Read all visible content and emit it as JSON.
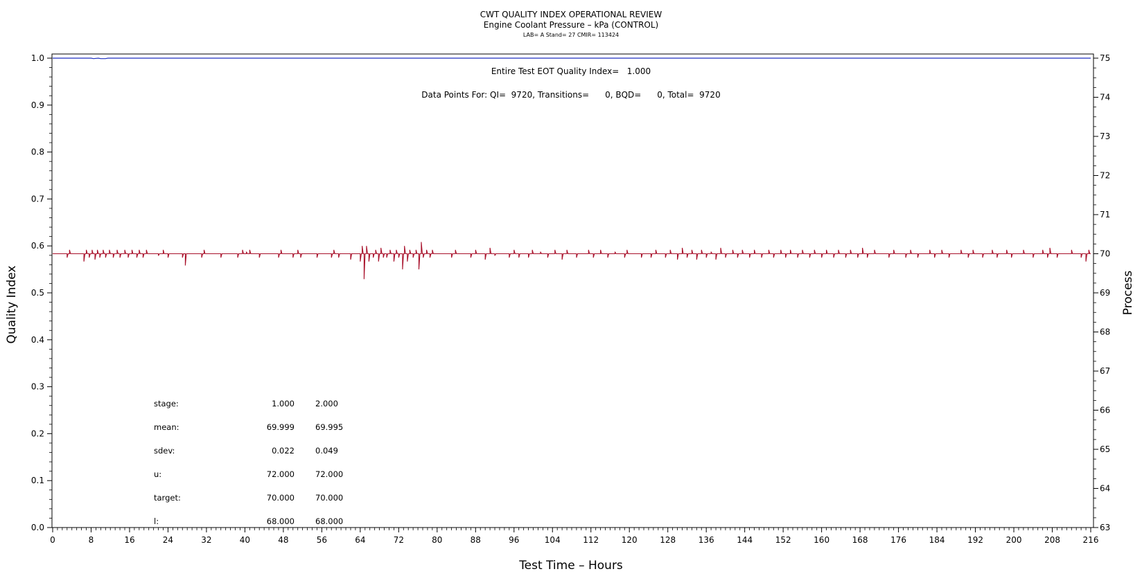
{
  "chart_data": {
    "type": "line",
    "title": "CWT QUALITY INDEX OPERATIONAL REVIEW",
    "subtitle": "Engine Coolant Pressure – kPa (CONTROL)",
    "subtitle2": "LAB= A Stand= 27 CMIR= 113424",
    "xlabel": "Test Time – Hours",
    "ylabel": "Quality Index",
    "y2label": "Process",
    "xlim": [
      0,
      216
    ],
    "ylim": [
      0.0,
      1.0
    ],
    "y2lim": [
      63,
      75
    ],
    "x_ticks": [
      0,
      8,
      16,
      24,
      32,
      40,
      48,
      56,
      64,
      72,
      80,
      88,
      96,
      104,
      112,
      120,
      128,
      136,
      144,
      152,
      160,
      168,
      176,
      184,
      192,
      200,
      208,
      216
    ],
    "y_ticks": [
      "0.0",
      "0.1",
      "0.2",
      "0.3",
      "0.4",
      "0.5",
      "0.6",
      "0.7",
      "0.8",
      "0.9",
      "1.0"
    ],
    "y2_ticks": [
      63,
      64,
      65,
      66,
      67,
      68,
      69,
      70,
      71,
      72,
      73,
      74,
      75
    ],
    "annotations": [
      "Entire Test EOT Quality Index=   1.000",
      "Data Points For: QI=  9720, Transitions=      0, BQD=      0, Total=  9720"
    ],
    "stats_table": {
      "rows": [
        {
          "label": "stage:",
          "values": [
            "1.000",
            "2.000"
          ]
        },
        {
          "label": "mean:",
          "values": [
            "69.999",
            "69.995"
          ]
        },
        {
          "label": "sdev:",
          "values": [
            "0.022",
            "0.049"
          ]
        },
        {
          "label": "u:",
          "values": [
            "72.000",
            "72.000"
          ]
        },
        {
          "label": "target:",
          "values": [
            "70.000",
            "70.000"
          ]
        },
        {
          "label": "l:",
          "values": [
            "68.000",
            "68.000"
          ]
        }
      ]
    },
    "series": [
      {
        "axis": "left",
        "color": "#1f2fbf",
        "x": [
          0,
          8,
          8.5,
          9.5,
          10,
          11,
          11.5,
          216
        ],
        "y": [
          1.0,
          1.0,
          0.999,
          1.0,
          0.999,
          0.999,
          1.0,
          1.0
        ]
      },
      {
        "axis": "right",
        "color": "#a8102a",
        "baseline": 70.0,
        "excursions": [
          [
            3.0,
            69.9
          ],
          [
            3.5,
            70.1
          ],
          [
            6.5,
            69.8
          ],
          [
            7.0,
            70.1
          ],
          [
            7.6,
            69.9
          ],
          [
            8.2,
            70.1
          ],
          [
            8.8,
            69.85
          ],
          [
            9.3,
            70.1
          ],
          [
            9.8,
            69.9
          ],
          [
            10.5,
            70.1
          ],
          [
            11.0,
            69.9
          ],
          [
            11.8,
            70.1
          ],
          [
            12.6,
            69.9
          ],
          [
            13.4,
            70.1
          ],
          [
            14.0,
            69.9
          ],
          [
            15.0,
            70.1
          ],
          [
            15.7,
            69.9
          ],
          [
            16.5,
            70.1
          ],
          [
            17.5,
            69.9
          ],
          [
            18.0,
            70.1
          ],
          [
            18.8,
            69.9
          ],
          [
            19.5,
            70.1
          ],
          [
            22.0,
            69.95
          ],
          [
            23.0,
            70.1
          ],
          [
            24.0,
            69.9
          ],
          [
            27.0,
            69.9
          ],
          [
            27.6,
            69.7
          ],
          [
            31.0,
            69.9
          ],
          [
            31.5,
            70.1
          ],
          [
            35.0,
            69.9
          ],
          [
            38.5,
            69.9
          ],
          [
            39.5,
            70.1
          ],
          [
            40.3,
            70.05
          ],
          [
            41.0,
            70.1
          ],
          [
            43.0,
            69.9
          ],
          [
            47.0,
            69.9
          ],
          [
            47.5,
            70.1
          ],
          [
            50.0,
            69.9
          ],
          [
            51.0,
            70.1
          ],
          [
            51.6,
            69.9
          ],
          [
            55.0,
            69.9
          ],
          [
            58.0,
            69.9
          ],
          [
            58.5,
            70.1
          ],
          [
            59.5,
            69.9
          ],
          [
            62.0,
            69.85
          ],
          [
            64.0,
            69.8
          ],
          [
            64.4,
            70.2
          ],
          [
            64.8,
            69.35
          ],
          [
            65.3,
            70.2
          ],
          [
            65.8,
            69.8
          ],
          [
            66.7,
            69.9
          ],
          [
            67.2,
            70.1
          ],
          [
            67.8,
            69.8
          ],
          [
            68.3,
            70.15
          ],
          [
            68.8,
            69.9
          ],
          [
            69.5,
            69.9
          ],
          [
            70.2,
            70.1
          ],
          [
            71.0,
            69.8
          ],
          [
            71.5,
            70.1
          ],
          [
            72.0,
            69.9
          ],
          [
            72.8,
            69.6
          ],
          [
            73.2,
            70.2
          ],
          [
            73.8,
            69.8
          ],
          [
            74.3,
            70.1
          ],
          [
            75.0,
            69.9
          ],
          [
            75.6,
            70.1
          ],
          [
            76.2,
            69.6
          ],
          [
            76.7,
            70.3
          ],
          [
            77.1,
            69.9
          ],
          [
            77.8,
            70.1
          ],
          [
            78.5,
            69.9
          ],
          [
            79.0,
            70.1
          ],
          [
            83.0,
            69.9
          ],
          [
            83.8,
            70.1
          ],
          [
            87.0,
            69.9
          ],
          [
            88.0,
            70.1
          ],
          [
            90.0,
            69.85
          ],
          [
            91.0,
            70.15
          ],
          [
            92.0,
            69.95
          ],
          [
            95.0,
            69.9
          ],
          [
            96.0,
            70.1
          ],
          [
            97.0,
            69.9
          ],
          [
            99.0,
            69.9
          ],
          [
            99.8,
            70.1
          ],
          [
            101.5,
            70.05
          ],
          [
            103.0,
            69.9
          ],
          [
            104.5,
            70.1
          ],
          [
            106.0,
            69.85
          ],
          [
            107.0,
            70.1
          ],
          [
            109.0,
            69.9
          ],
          [
            111.5,
            70.1
          ],
          [
            112.5,
            69.9
          ],
          [
            114.0,
            70.1
          ],
          [
            115.5,
            69.9
          ],
          [
            117.0,
            70.05
          ],
          [
            119.0,
            69.9
          ],
          [
            119.5,
            70.1
          ],
          [
            122.5,
            69.9
          ],
          [
            124.5,
            69.9
          ],
          [
            125.5,
            70.1
          ],
          [
            127.5,
            69.9
          ],
          [
            128.5,
            70.1
          ],
          [
            130.0,
            69.85
          ],
          [
            131.0,
            70.15
          ],
          [
            132.0,
            69.9
          ],
          [
            133.0,
            70.1
          ],
          [
            134.0,
            69.85
          ],
          [
            135.0,
            70.1
          ],
          [
            136.0,
            69.9
          ],
          [
            137.0,
            70.05
          ],
          [
            138.0,
            69.85
          ],
          [
            139.0,
            70.15
          ],
          [
            140.0,
            69.9
          ],
          [
            141.5,
            70.1
          ],
          [
            142.5,
            69.9
          ],
          [
            143.5,
            70.1
          ],
          [
            145.0,
            69.9
          ],
          [
            146.0,
            70.1
          ],
          [
            147.5,
            69.9
          ],
          [
            149.0,
            70.1
          ],
          [
            150.0,
            69.9
          ],
          [
            151.5,
            70.1
          ],
          [
            152.5,
            69.9
          ],
          [
            153.5,
            70.1
          ],
          [
            155.0,
            69.9
          ],
          [
            156.0,
            70.1
          ],
          [
            157.5,
            69.9
          ],
          [
            158.5,
            70.1
          ],
          [
            160.0,
            69.9
          ],
          [
            161.0,
            70.1
          ],
          [
            162.5,
            69.9
          ],
          [
            163.5,
            70.1
          ],
          [
            165.0,
            69.9
          ],
          [
            166.0,
            70.1
          ],
          [
            167.5,
            69.9
          ],
          [
            168.5,
            70.15
          ],
          [
            169.5,
            69.9
          ],
          [
            171.0,
            70.1
          ],
          [
            174.0,
            69.9
          ],
          [
            175.0,
            70.1
          ],
          [
            177.5,
            69.9
          ],
          [
            178.5,
            70.1
          ],
          [
            180.0,
            69.9
          ],
          [
            182.5,
            70.1
          ],
          [
            183.5,
            69.9
          ],
          [
            185.0,
            70.1
          ],
          [
            186.5,
            69.9
          ],
          [
            189.0,
            70.1
          ],
          [
            190.5,
            69.9
          ],
          [
            191.5,
            70.1
          ],
          [
            193.5,
            69.9
          ],
          [
            195.5,
            70.1
          ],
          [
            196.5,
            69.9
          ],
          [
            198.5,
            70.1
          ],
          [
            199.5,
            69.9
          ],
          [
            202.0,
            70.1
          ],
          [
            204.0,
            69.9
          ],
          [
            206.0,
            70.1
          ],
          [
            207.0,
            69.9
          ],
          [
            207.5,
            70.15
          ],
          [
            209.0,
            69.9
          ],
          [
            212.0,
            70.1
          ],
          [
            214.0,
            69.9
          ],
          [
            215.0,
            69.8
          ],
          [
            215.6,
            70.1
          ]
        ]
      }
    ],
    "grid": false,
    "legend": "none"
  }
}
